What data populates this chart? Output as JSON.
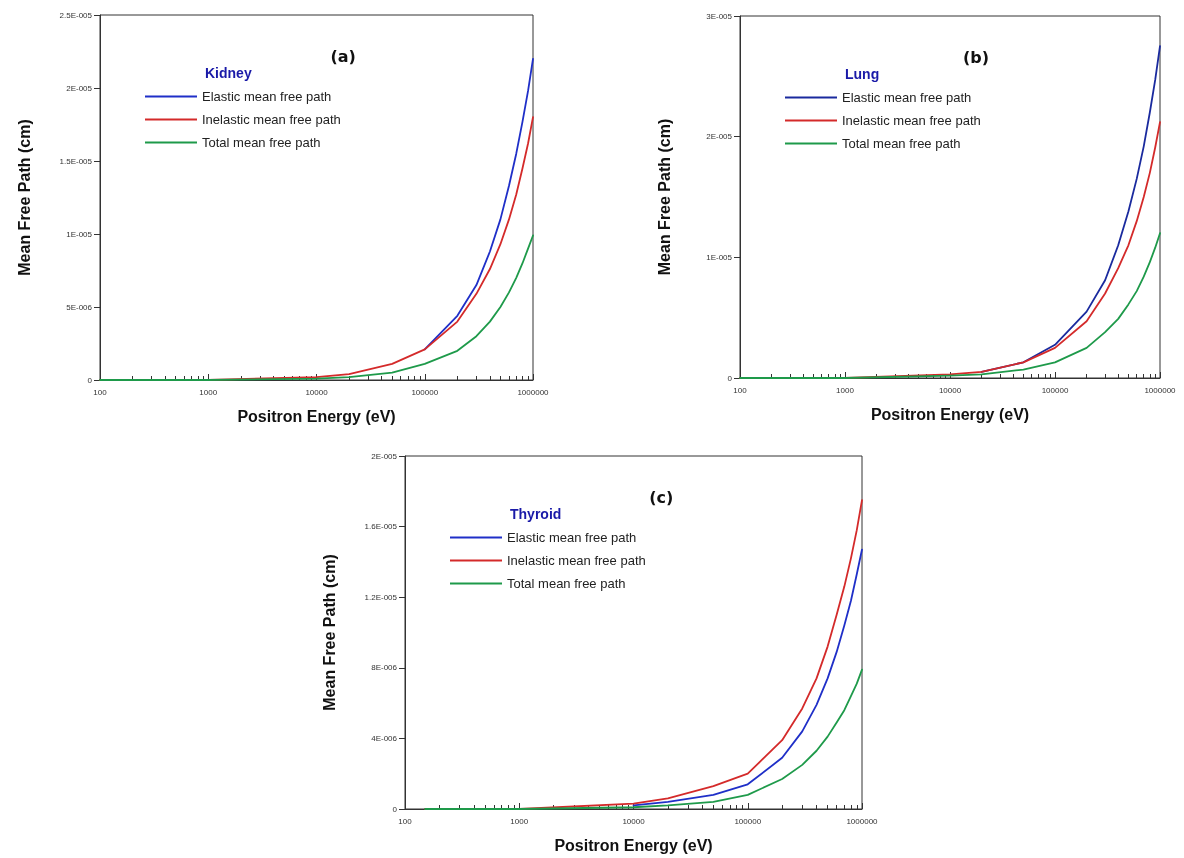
{
  "chart_data": [
    {
      "type": "line",
      "title": "(a)",
      "legend_title": "Kidney",
      "xlabel": "Positron Energy (eV)",
      "ylabel": "Mean Free Path (cm)",
      "log": "x",
      "grid": false,
      "legend": "top left",
      "marker": "none",
      "line_style": "solid",
      "x": [
        100,
        1000,
        10000,
        20000,
        50000,
        100000,
        200000,
        300000,
        400000,
        500000,
        600000,
        700000,
        800000,
        900000,
        1000000
      ],
      "xlim": [
        100,
        1000000
      ],
      "xticks": [
        100,
        1000,
        10000,
        100000,
        1000000
      ],
      "ylim": [
        0,
        2.5e-05
      ],
      "yticks": [
        {
          "value": 0,
          "label": "0"
        },
        {
          "value": 5e-06,
          "label": "5E-006"
        },
        {
          "value": 1e-05,
          "label": "1E-005"
        },
        {
          "value": 1.5e-05,
          "label": "1.5E-005"
        },
        {
          "value": 2e-05,
          "label": "2E-005"
        },
        {
          "value": 2.5e-05,
          "label": "2.5E-005"
        }
      ],
      "series": [
        {
          "name": "Elastic mean free path",
          "color": "#1f2fc8",
          "values": [
            null,
            null,
            null,
            null,
            null,
            2.1e-06,
            4.4e-06,
            6.5e-06,
            8.8e-06,
            1.1e-05,
            1.33e-05,
            1.55e-05,
            1.77e-05,
            1.98e-05,
            2.2e-05
          ]
        },
        {
          "name": "Inelastic mean free path",
          "color": "#d42a2a",
          "values": [
            0,
            0,
            2e-07,
            4e-07,
            1.1e-06,
            2.1e-06,
            4e-06,
            5.9e-06,
            7.6e-06,
            9.3e-06,
            1.1e-05,
            1.27e-05,
            1.45e-05,
            1.62e-05,
            1.8e-05
          ]
        },
        {
          "name": "Total mean free path",
          "color": "#1e9a4a",
          "values": [
            0,
            0,
            1e-07,
            2e-07,
            5e-07,
            1.1e-06,
            2e-06,
            3e-06,
            4e-06,
            5e-06,
            6e-06,
            7e-06,
            8e-06,
            9e-06,
            9.9e-06
          ]
        }
      ]
    },
    {
      "type": "line",
      "title": "(b)",
      "legend_title": "Lung",
      "xlabel": "Positron Energy (eV)",
      "ylabel": "Mean Free Path (cm)",
      "log": "x",
      "grid": false,
      "legend": "top left",
      "marker": "none",
      "line_style": "solid",
      "x": [
        100,
        1000,
        10000,
        20000,
        50000,
        100000,
        200000,
        300000,
        400000,
        500000,
        600000,
        700000,
        800000,
        900000,
        1000000
      ],
      "xlim": [
        100,
        1000000
      ],
      "xticks": [
        100,
        1000,
        10000,
        100000,
        1000000
      ],
      "ylim": [
        0,
        3e-05
      ],
      "yticks": [
        {
          "value": 0,
          "label": "0"
        },
        {
          "value": 1e-05,
          "label": "1E-005"
        },
        {
          "value": 2e-05,
          "label": "2E-005"
        },
        {
          "value": 3e-05,
          "label": "3E-005"
        }
      ],
      "series": [
        {
          "name": "Elastic mean free path",
          "color": "#1a2a9e",
          "values": [
            null,
            null,
            null,
            5e-07,
            1.3e-06,
            2.75e-06,
            5.5e-06,
            8.1e-06,
            1.1e-05,
            1.38e-05,
            1.65e-05,
            1.92e-05,
            2.2e-05,
            2.47e-05,
            2.75e-05
          ]
        },
        {
          "name": "Inelastic mean free path",
          "color": "#d42a2a",
          "values": [
            0,
            0,
            3e-07,
            5e-07,
            1.3e-06,
            2.5e-06,
            4.7e-06,
            7e-06,
            9.1e-06,
            1.1e-05,
            1.3e-05,
            1.5e-05,
            1.7e-05,
            1.91e-05,
            2.12e-05
          ]
        },
        {
          "name": "Total mean free path",
          "color": "#1e9a4a",
          "values": [
            0,
            0,
            2e-07,
            3e-07,
            7e-07,
            1.3e-06,
            2.5e-06,
            3.8e-06,
            4.9e-06,
            6.1e-06,
            7.2e-06,
            8.4e-06,
            9.6e-06,
            1.08e-05,
            1.2e-05
          ]
        }
      ]
    },
    {
      "type": "line",
      "title": "(c)",
      "legend_title": "Thyroid",
      "xlabel": "Positron Energy (eV)",
      "ylabel": "Mean Free Path (cm)",
      "log": "x",
      "grid": false,
      "legend": "top left",
      "marker": "none",
      "line_style": "solid",
      "x": [
        150,
        1000,
        10000,
        20000,
        50000,
        100000,
        200000,
        300000,
        400000,
        500000,
        600000,
        700000,
        800000,
        900000,
        1000000
      ],
      "xlim": [
        100,
        1000000
      ],
      "xticks": [
        100,
        1000,
        10000,
        100000,
        1000000
      ],
      "ylim": [
        0,
        2e-05
      ],
      "yticks": [
        {
          "value": 0,
          "label": "0"
        },
        {
          "value": 4e-06,
          "label": "4E-006"
        },
        {
          "value": 8e-06,
          "label": "8E-006"
        },
        {
          "value": 1.2e-05,
          "label": "1.2E-005"
        },
        {
          "value": 1.6e-05,
          "label": "1.6E-005"
        },
        {
          "value": 2e-05,
          "label": "2E-005"
        }
      ],
      "series": [
        {
          "name": "Elastic mean free path",
          "color": "#1f2fc8",
          "values": [
            null,
            null,
            2e-07,
            4e-07,
            8e-07,
            1.4e-06,
            2.9e-06,
            4.4e-06,
            5.9e-06,
            7.4e-06,
            8.9e-06,
            1.04e-05,
            1.18e-05,
            1.33e-05,
            1.47e-05
          ]
        },
        {
          "name": "Inelastic mean free path",
          "color": "#d42a2a",
          "values": [
            0,
            0,
            3e-07,
            6e-07,
            1.3e-06,
            2e-06,
            3.9e-06,
            5.7e-06,
            7.4e-06,
            9.2e-06,
            1.1e-05,
            1.26e-05,
            1.42e-05,
            1.58e-05,
            1.75e-05
          ]
        },
        {
          "name": "Total mean free path",
          "color": "#1e9a4a",
          "values": [
            0,
            0,
            1e-07,
            2e-07,
            4e-07,
            8e-07,
            1.7e-06,
            2.5e-06,
            3.3e-06,
            4.1e-06,
            4.9e-06,
            5.6e-06,
            6.4e-06,
            7.1e-06,
            7.9e-06
          ]
        }
      ]
    }
  ]
}
